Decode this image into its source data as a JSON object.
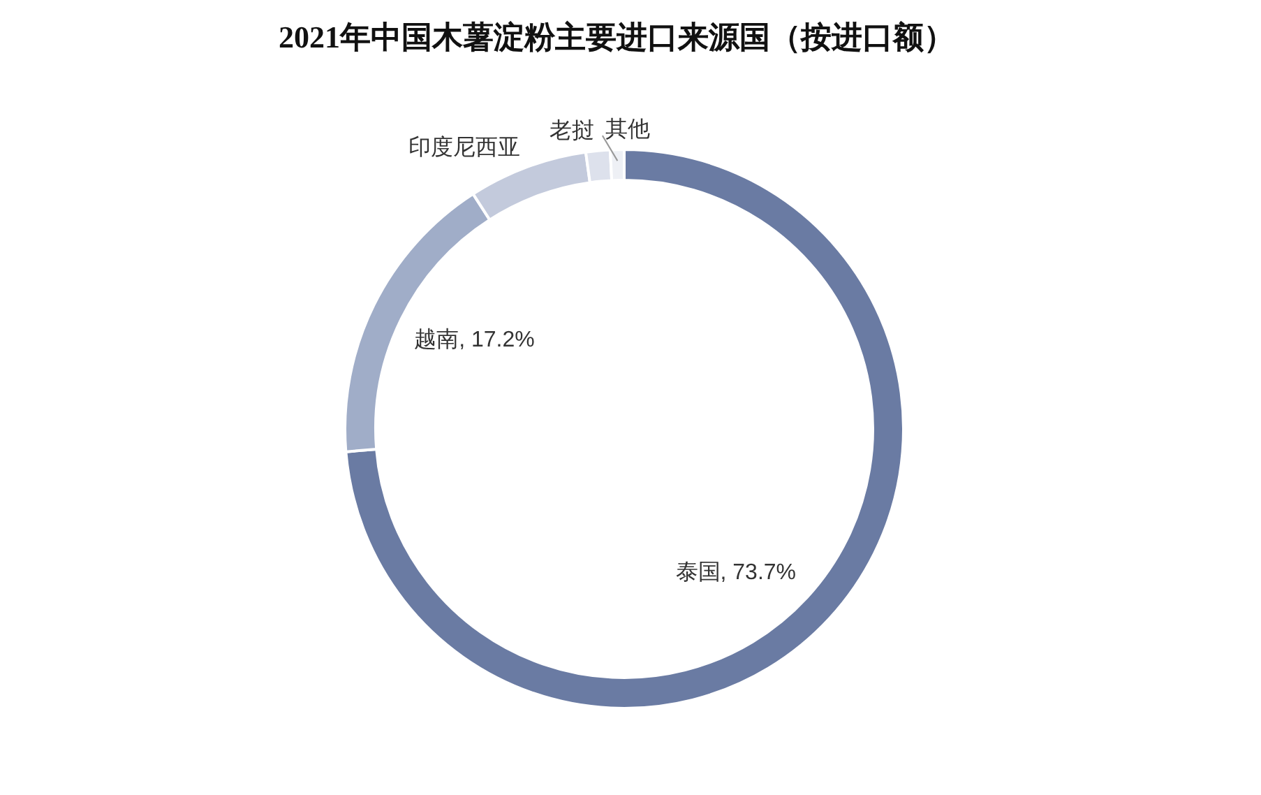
{
  "chart_data": {
    "type": "donut",
    "title": "2021年中国木薯淀粉主要进口来源国（按进口额）",
    "categories": [
      "泰国",
      "越南",
      "印度尼西亚",
      "老挝",
      "其他"
    ],
    "values": [
      73.7,
      17.2,
      6.9,
      1.4,
      0.8
    ],
    "value_labels": [
      "73.7%",
      "17.2%",
      null,
      null,
      null
    ],
    "colors": [
      "#6a7ba3",
      "#a0adc8",
      "#c3cadc",
      "#dde1ec",
      "#eef0f5"
    ],
    "legend": false
  }
}
